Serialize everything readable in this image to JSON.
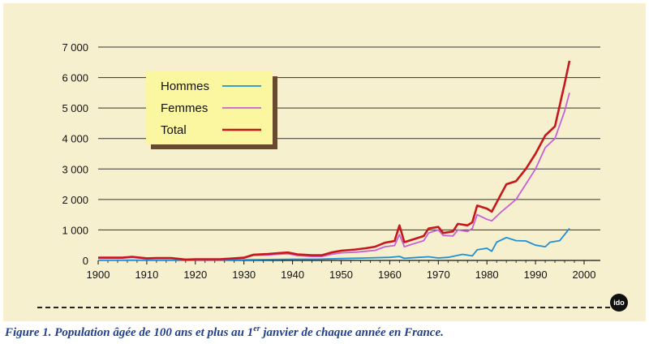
{
  "caption": {
    "prefix": "Figure 1. Population âgée de 100 ans et plus au 1",
    "sup": "er",
    "suffix": " janvier de chaque année en France."
  },
  "logo_text": "ido",
  "chart_data": {
    "type": "line",
    "title": "",
    "xlabel": "",
    "ylabel": "",
    "xlim": [
      1900,
      2000
    ],
    "ylim": [
      0,
      7000
    ],
    "x_ticks": [
      1900,
      1910,
      1920,
      1930,
      1940,
      1950,
      1960,
      1970,
      1980,
      1990,
      2000
    ],
    "x_tick_labels": [
      "1900",
      "1910",
      "1920",
      "1930",
      "1940",
      "1950",
      "1960",
      "1970",
      "1980",
      "1990",
      "2000"
    ],
    "y_ticks": [
      0,
      1000,
      2000,
      3000,
      4000,
      5000,
      6000,
      7000
    ],
    "y_tick_labels": [
      "0",
      "1 000",
      "2 000",
      "3 000",
      "4 000",
      "5 000",
      "6 000",
      "7 000"
    ],
    "grid": "horizontal",
    "legend": "top-left",
    "series": [
      {
        "name": "Hommes",
        "color": "#1e90d6",
        "points": [
          [
            1900,
            10
          ],
          [
            1905,
            10
          ],
          [
            1910,
            10
          ],
          [
            1915,
            10
          ],
          [
            1920,
            10
          ],
          [
            1925,
            10
          ],
          [
            1930,
            20
          ],
          [
            1935,
            30
          ],
          [
            1940,
            40
          ],
          [
            1945,
            40
          ],
          [
            1950,
            60
          ],
          [
            1955,
            80
          ],
          [
            1960,
            100
          ],
          [
            1962,
            130
          ],
          [
            1963,
            70
          ],
          [
            1966,
            100
          ],
          [
            1968,
            120
          ],
          [
            1970,
            80
          ],
          [
            1972,
            100
          ],
          [
            1975,
            200
          ],
          [
            1977,
            150
          ],
          [
            1978,
            350
          ],
          [
            1980,
            400
          ],
          [
            1981,
            300
          ],
          [
            1982,
            600
          ],
          [
            1984,
            750
          ],
          [
            1986,
            650
          ],
          [
            1988,
            640
          ],
          [
            1990,
            500
          ],
          [
            1992,
            450
          ],
          [
            1993,
            600
          ],
          [
            1995,
            650
          ],
          [
            1997,
            1050
          ]
        ]
      },
      {
        "name": "Femmes",
        "color": "#c561d6",
        "points": [
          [
            1900,
            80
          ],
          [
            1905,
            80
          ],
          [
            1907,
            100
          ],
          [
            1910,
            60
          ],
          [
            1912,
            70
          ],
          [
            1915,
            70
          ],
          [
            1918,
            20
          ],
          [
            1920,
            30
          ],
          [
            1925,
            30
          ],
          [
            1928,
            60
          ],
          [
            1930,
            80
          ],
          [
            1932,
            170
          ],
          [
            1935,
            180
          ],
          [
            1937,
            200
          ],
          [
            1939,
            220
          ],
          [
            1941,
            160
          ],
          [
            1944,
            130
          ],
          [
            1946,
            130
          ],
          [
            1948,
            200
          ],
          [
            1950,
            250
          ],
          [
            1953,
            270
          ],
          [
            1955,
            300
          ],
          [
            1957,
            330
          ],
          [
            1959,
            450
          ],
          [
            1961,
            490
          ],
          [
            1962,
            850
          ],
          [
            1963,
            450
          ],
          [
            1965,
            550
          ],
          [
            1967,
            650
          ],
          [
            1968,
            900
          ],
          [
            1970,
            1000
          ],
          [
            1971,
            820
          ],
          [
            1973,
            800
          ],
          [
            1974,
            1000
          ],
          [
            1976,
            950
          ],
          [
            1977,
            1050
          ],
          [
            1978,
            1500
          ],
          [
            1980,
            1350
          ],
          [
            1981,
            1300
          ],
          [
            1983,
            1600
          ],
          [
            1986,
            2000
          ],
          [
            1988,
            2500
          ],
          [
            1990,
            3000
          ],
          [
            1992,
            3700
          ],
          [
            1994,
            4000
          ],
          [
            1996,
            4900
          ],
          [
            1997,
            5500
          ]
        ]
      },
      {
        "name": "Total",
        "color": "#c8161d",
        "points": [
          [
            1900,
            90
          ],
          [
            1905,
            90
          ],
          [
            1907,
            120
          ],
          [
            1910,
            70
          ],
          [
            1912,
            80
          ],
          [
            1915,
            80
          ],
          [
            1918,
            30
          ],
          [
            1920,
            40
          ],
          [
            1925,
            40
          ],
          [
            1928,
            70
          ],
          [
            1930,
            90
          ],
          [
            1932,
            190
          ],
          [
            1935,
            210
          ],
          [
            1937,
            240
          ],
          [
            1939,
            260
          ],
          [
            1941,
            200
          ],
          [
            1944,
            170
          ],
          [
            1946,
            170
          ],
          [
            1948,
            260
          ],
          [
            1950,
            320
          ],
          [
            1953,
            360
          ],
          [
            1955,
            400
          ],
          [
            1957,
            450
          ],
          [
            1959,
            580
          ],
          [
            1961,
            640
          ],
          [
            1962,
            1150
          ],
          [
            1963,
            600
          ],
          [
            1965,
            700
          ],
          [
            1967,
            800
          ],
          [
            1968,
            1050
          ],
          [
            1970,
            1100
          ],
          [
            1971,
            900
          ],
          [
            1973,
            950
          ],
          [
            1974,
            1200
          ],
          [
            1976,
            1150
          ],
          [
            1977,
            1250
          ],
          [
            1978,
            1800
          ],
          [
            1980,
            1700
          ],
          [
            1981,
            1600
          ],
          [
            1983,
            2200
          ],
          [
            1984,
            2500
          ],
          [
            1986,
            2600
          ],
          [
            1988,
            3000
          ],
          [
            1990,
            3500
          ],
          [
            1992,
            4100
          ],
          [
            1994,
            4400
          ],
          [
            1996,
            5800
          ],
          [
            1997,
            6550
          ]
        ]
      }
    ]
  }
}
